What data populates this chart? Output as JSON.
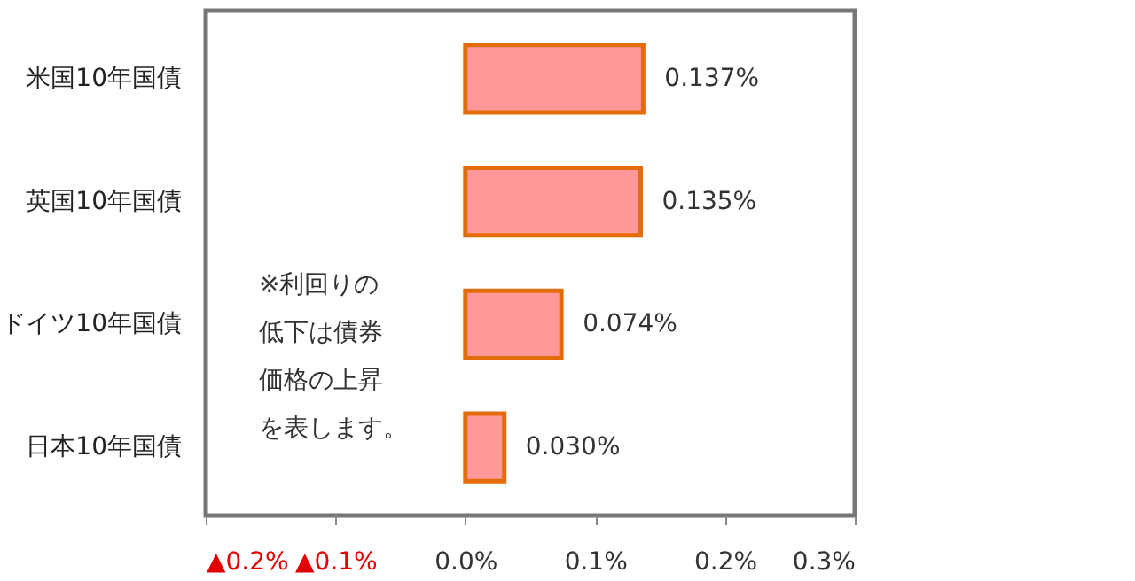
{
  "chart_data": {
    "type": "bar",
    "orientation": "horizontal",
    "categories": [
      "米国10年国債",
      "英国10年国債",
      "ドイツ10年国債",
      "日本10年国債"
    ],
    "values": [
      0.137,
      0.135,
      0.074,
      0.03
    ],
    "value_labels": [
      "0.137%",
      "0.135%",
      "0.074%",
      "0.030%"
    ],
    "color": "#ff9999",
    "xlim": [
      -0.2,
      0.3
    ],
    "xticks": [
      {
        "value": -0.2,
        "label": "▲0.2%"
      },
      {
        "value": -0.1,
        "label": "▲0.1%"
      },
      {
        "value": 0,
        "label": "0.0%"
      },
      {
        "value": 0.1,
        "label": "0.1%"
      },
      {
        "value": 0.2,
        "label": "0.2%"
      },
      {
        "value": 0.3,
        "label": "0.3%"
      }
    ],
    "annotations": [
      "※利回りの",
      "低下は債券",
      "価格の上昇",
      "を表します。"
    ],
    "grid": false
  }
}
